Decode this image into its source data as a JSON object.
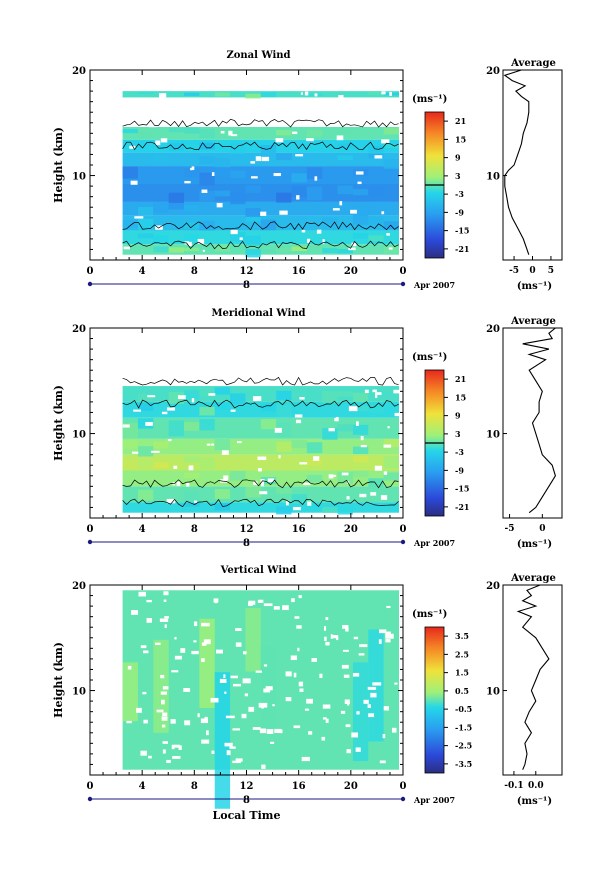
{
  "chart_data": [
    {
      "type": "heatmap",
      "title": "Zonal Wind",
      "ylabel": "Height (km)",
      "xlabel": "",
      "xlim": [
        0,
        24
      ],
      "ylim": [
        2,
        20
      ],
      "xticks": [
        "0",
        "4",
        "8",
        "12",
        "16",
        "20",
        "0"
      ],
      "yticks": [
        "10",
        "20"
      ],
      "date_marker": "8",
      "date_label": "Apr 2007",
      "colorbar": {
        "unit_label": "(ms⁻¹)",
        "range": [
          -24,
          24
        ],
        "ticks": [
          "21",
          "15",
          "9",
          "3",
          "-3",
          "-9",
          "-15",
          "-21"
        ]
      },
      "data_start_hour": 2.5,
      "layers": [
        {
          "y0": 2.5,
          "y1": 3.5,
          "value": 0
        },
        {
          "y0": 3.5,
          "y1": 4.8,
          "value": -2
        },
        {
          "y0": 4.8,
          "y1": 6.2,
          "value": -6
        },
        {
          "y0": 6.2,
          "y1": 7.5,
          "value": -8
        },
        {
          "y0": 7.5,
          "y1": 9.2,
          "value": -11
        },
        {
          "y0": 9.2,
          "y1": 10.9,
          "value": -10
        },
        {
          "y0": 10.9,
          "y1": 12.2,
          "value": -6
        },
        {
          "y0": 12.2,
          "y1": 13.4,
          "value": -3
        },
        {
          "y0": 13.4,
          "y1": 14.6,
          "value": 0
        },
        {
          "y0": 17.4,
          "y1": 18.0,
          "value": -1
        }
      ],
      "average": {
        "xlim": [
          -8,
          8
        ],
        "xticks": [
          "-5",
          "0",
          "5"
        ],
        "xlabel": "(ms⁻¹)",
        "title": "Average",
        "profile": [
          [
            2.5,
            -1
          ],
          [
            3,
            -1.5
          ],
          [
            4,
            -2.5
          ],
          [
            5,
            -4
          ],
          [
            6,
            -5.5
          ],
          [
            7,
            -6.5
          ],
          [
            8,
            -7
          ],
          [
            9,
            -7.5
          ],
          [
            10,
            -7.5
          ],
          [
            10.5,
            -6.5
          ],
          [
            11,
            -5
          ],
          [
            12,
            -4
          ],
          [
            13,
            -3
          ],
          [
            14,
            -2.5
          ],
          [
            15,
            -1.5
          ],
          [
            16,
            -1
          ],
          [
            17,
            -1
          ],
          [
            17.5,
            -3
          ],
          [
            18,
            -4.5
          ],
          [
            18.5,
            -2
          ],
          [
            19,
            -5.5
          ],
          [
            19.5,
            -7.5
          ],
          [
            20,
            -3
          ]
        ]
      }
    },
    {
      "type": "heatmap",
      "title": "Meridional Wind",
      "ylabel": "Height (km)",
      "xlabel": "",
      "xlim": [
        0,
        24
      ],
      "ylim": [
        2,
        20
      ],
      "xticks": [
        "0",
        "4",
        "8",
        "12",
        "16",
        "20",
        "0"
      ],
      "yticks": [
        "10",
        "20"
      ],
      "date_marker": "8",
      "date_label": "Apr 2007",
      "colorbar": {
        "unit_label": "(ms⁻¹)",
        "range": [
          -24,
          24
        ],
        "ticks": [
          "21",
          "15",
          "9",
          "3",
          "-3",
          "-9",
          "-15",
          "-21"
        ]
      },
      "data_start_hour": 2.5,
      "layers": [
        {
          "y0": 2.5,
          "y1": 3.5,
          "value": -2
        },
        {
          "y0": 3.5,
          "y1": 5.0,
          "value": 0
        },
        {
          "y0": 5.0,
          "y1": 6.5,
          "value": 2
        },
        {
          "y0": 6.5,
          "y1": 8.0,
          "value": 5
        },
        {
          "y0": 8.0,
          "y1": 9.5,
          "value": 2
        },
        {
          "y0": 9.5,
          "y1": 11.5,
          "value": 0
        },
        {
          "y0": 11.5,
          "y1": 13.0,
          "value": -2
        },
        {
          "y0": 13.0,
          "y1": 14.5,
          "value": -1
        }
      ],
      "average": {
        "xlim": [
          -6,
          3
        ],
        "xticks": [
          "-5",
          "0"
        ],
        "xlabel": "(ms⁻¹)",
        "title": "Average",
        "profile": [
          [
            2.5,
            -2
          ],
          [
            3,
            -1
          ],
          [
            4,
            0
          ],
          [
            5,
            1
          ],
          [
            6,
            2
          ],
          [
            7,
            1.5
          ],
          [
            8,
            0
          ],
          [
            9,
            -0.5
          ],
          [
            10,
            -1
          ],
          [
            11,
            -1.5
          ],
          [
            12,
            -0.5
          ],
          [
            13,
            -0.5
          ],
          [
            14,
            0
          ],
          [
            15,
            -1
          ],
          [
            16,
            -2
          ],
          [
            17,
            0.5
          ],
          [
            17.5,
            -2
          ],
          [
            18,
            1
          ],
          [
            18.5,
            -3
          ],
          [
            19,
            1.5
          ],
          [
            19.5,
            1
          ],
          [
            20,
            2
          ]
        ]
      }
    },
    {
      "type": "heatmap",
      "title": "Vertical Wind",
      "ylabel": "Height (km)",
      "xlabel": "Local Time",
      "xlim": [
        0,
        24
      ],
      "ylim": [
        2,
        20
      ],
      "xticks": [
        "0",
        "4",
        "8",
        "12",
        "16",
        "20",
        "0"
      ],
      "yticks": [
        "10",
        "20"
      ],
      "date_marker": "8",
      "date_label": "Apr 2007",
      "colorbar": {
        "unit_label": "(ms⁻¹)",
        "range": [
          -4,
          4
        ],
        "ticks": [
          "3.5",
          "2.5",
          "1.5",
          "0.5",
          "-0.5",
          "-1.5",
          "-2.5",
          "-3.5"
        ]
      },
      "data_start_hour": 2.5,
      "layers": [
        {
          "y0": 2.5,
          "y1": 19.5,
          "value": 0
        }
      ],
      "average": {
        "xlim": [
          -0.15,
          0.12
        ],
        "xticks": [
          "-0.1",
          "0.0"
        ],
        "xlabel": "(ms⁻¹)",
        "title": "Average",
        "profile": [
          [
            2.5,
            -0.06
          ],
          [
            3,
            -0.05
          ],
          [
            4,
            -0.04
          ],
          [
            5,
            -0.05
          ],
          [
            6,
            -0.02
          ],
          [
            7,
            -0.05
          ],
          [
            8,
            -0.03
          ],
          [
            9,
            0.0
          ],
          [
            10,
            -0.02
          ],
          [
            11,
            0.0
          ],
          [
            12,
            0.02
          ],
          [
            13,
            0.06
          ],
          [
            14,
            0.03
          ],
          [
            15,
            0.0
          ],
          [
            16,
            -0.06
          ],
          [
            17,
            -0.02
          ],
          [
            17.5,
            -0.08
          ],
          [
            18,
            0.0
          ],
          [
            18.5,
            -0.06
          ],
          [
            19,
            -0.02
          ],
          [
            19.5,
            -0.04
          ],
          [
            20,
            0.02
          ]
        ]
      }
    }
  ]
}
